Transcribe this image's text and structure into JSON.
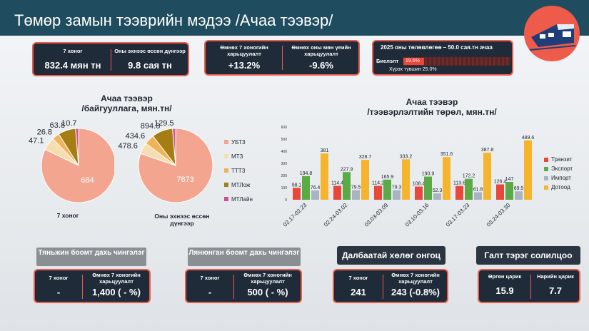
{
  "title": "Төмөр замын тээврийн мэдээ /Ачаа тээвэр/",
  "top_stats": {
    "week_label": "7 хоног",
    "week_value": "832.4 мян тн",
    "ytd_label": "Оны эхнээс өссөн дүнгээр",
    "ytd_value": "9.8  сая тн",
    "prev_week_label": "Өмнөх 7 хоногийн харьцуулалт",
    "prev_week_value": "+13.2%",
    "prev_year_label": "Өмнөх оны мөн үеийн харьцуулалт",
    "prev_year_value": "-9.6%"
  },
  "budget": {
    "title": "2025 оны төлөвлөгөө – 50.0 сая.тн ачаа",
    "row_label": "Биелэлт",
    "percent_text": "19.6%",
    "percent_value": 19.6,
    "target_label": "Хүрэх түвшин 25.0%"
  },
  "pie_section": {
    "title": "Ачаа тээвэр",
    "subtitle": "/байгууллага, мян.тн/",
    "week_caption": "7 хоног",
    "ytd_caption": "Оны эхнээс өссөн дүнгээр"
  },
  "bar_section": {
    "title": "Ачаа тээвэр",
    "subtitle": "/тээвэрлэлтийн төрөл, мян.тн/"
  },
  "chart_data": [
    {
      "type": "pie",
      "name": "7 хоног",
      "labels": [
        "УБТЗ",
        "МТЗ",
        "ТТТЗ",
        "МТЛож",
        "МТЛайн"
      ],
      "values": [
        684,
        47.1,
        26.8,
        63.8,
        10.7
      ],
      "colors": [
        "#f4a58f",
        "#f6deb0",
        "#f0b35a",
        "#a57d12",
        "#cc4f92"
      ]
    },
    {
      "type": "pie",
      "name": "Оны эхнээс өссөн дүнгээр",
      "labels": [
        "УБТЗ",
        "МТЗ",
        "ТТТЗ",
        "МТЛож",
        "МТЛайн"
      ],
      "values": [
        7873,
        478.6,
        434.6,
        894.8,
        129.5
      ],
      "colors": [
        "#f4a58f",
        "#f6deb0",
        "#f0b35a",
        "#a57d12",
        "#cc4f92"
      ]
    },
    {
      "type": "bar",
      "categories": [
        "02.17-02.23",
        "02.24-03.02",
        "03.03-03.09",
        "03.10-03.16",
        "03.17-03.23",
        "03.24-03.30"
      ],
      "series": [
        {
          "name": "Транзит",
          "color": "#e8473a",
          "values": [
            98.1,
            114.4,
            114.2,
            108.4,
            113.6,
            126.4
          ]
        },
        {
          "name": "Экспорт",
          "color": "#5aaa45",
          "values": [
            194.8,
            227.9,
            165.9,
            190.9,
            172.2,
            147
          ]
        },
        {
          "name": "Импорт",
          "color": "#a9b4c2",
          "values": [
            76.4,
            79.5,
            79.3,
            52.3,
            61.8,
            69.5
          ]
        },
        {
          "name": "Дотоод",
          "color": "#f5b42c",
          "values": [
            381,
            328.7,
            333.2,
            351.6,
            387.8,
            489.6
          ]
        }
      ],
      "ylim": [
        0,
        600
      ],
      "yticks": [
        "0",
        "100",
        "200",
        "300",
        "400",
        "500",
        "600"
      ]
    }
  ],
  "bottom": {
    "tianjin": {
      "banner": "Тяньжин боомт дахь чингэлэг",
      "week_label": "7 хоног",
      "week_value": "-",
      "prev_label": "Өмнөх 7 хоногийн харьцуулалт",
      "prev_value": "1,400 ( - %)"
    },
    "lianyungang": {
      "banner": "Лянюнган боомт дахь чингэлэг",
      "week_label": "7 хоног",
      "week_value": "-",
      "prev_label": "Өмнөх 7 хоногийн харьцуулалт",
      "prev_value": "500 ( - %)"
    },
    "sea": {
      "banner": "Далбаатай хөлөг онгоц",
      "week_label": "7 хоног",
      "week_value": "241",
      "prev_label": "Өмнөх 7 хоногийн харьцуулалт",
      "prev_value": "243 (-0.8%)"
    },
    "exchange": {
      "banner": "Галт тэрэг солилцоо",
      "out_label": "Өргөн царик",
      "out_value": "15.9",
      "in_label": "Нарийн царик",
      "in_value": "7.7"
    }
  }
}
